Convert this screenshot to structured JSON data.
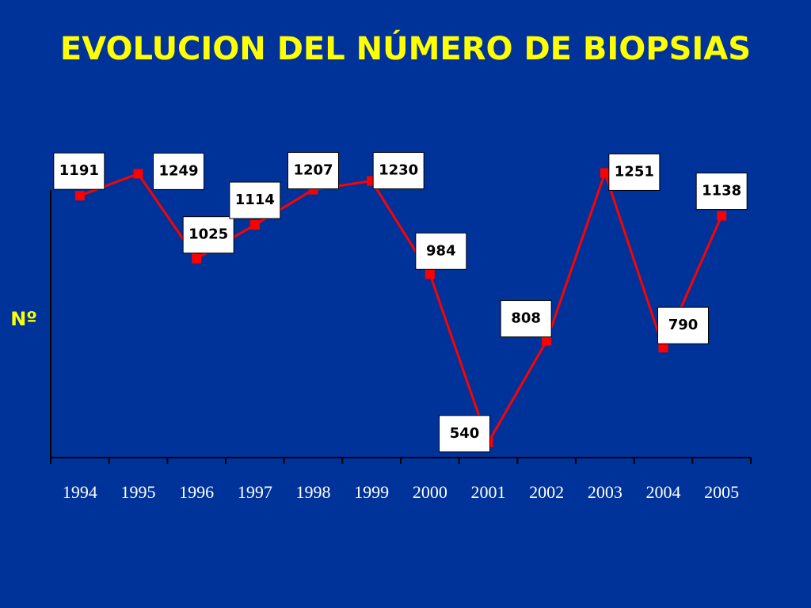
{
  "chart_data": {
    "type": "line",
    "title": "EVOLUCION DEL NÚMERO DE BIOPSIAS",
    "y_label": "Nº",
    "categories": [
      "1994",
      "1995",
      "1996",
      "1997",
      "1998",
      "1999",
      "2000",
      "2001",
      "2002",
      "2003",
      "2004",
      "2005"
    ],
    "series": [
      {
        "name": "Biopsias",
        "color": "#ff0000",
        "values": [
          1191,
          1249,
          1025,
          1114,
          1207,
          1230,
          984,
          540,
          808,
          1251,
          790,
          1138
        ]
      }
    ],
    "ylim": [
      500,
      1300
    ]
  }
}
